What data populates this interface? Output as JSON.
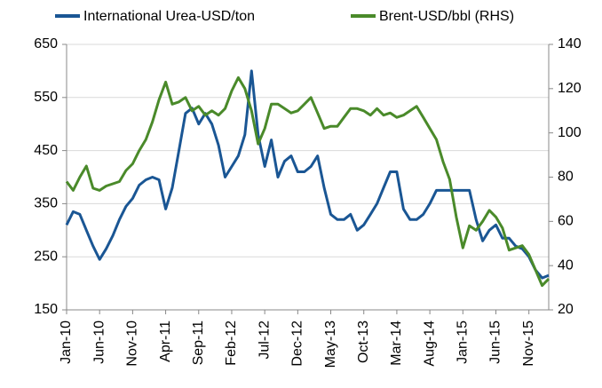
{
  "chart_data": {
    "type": "line",
    "categories": [
      "Jan-10",
      null,
      null,
      null,
      null,
      "Jun-10",
      null,
      null,
      null,
      null,
      "Nov-10",
      null,
      null,
      null,
      null,
      "Apr-11",
      null,
      null,
      null,
      null,
      "Sep-11",
      null,
      null,
      null,
      null,
      "Feb-12",
      null,
      null,
      null,
      null,
      "Jul-12",
      null,
      null,
      null,
      null,
      "Dec-12",
      null,
      null,
      null,
      null,
      "May-13",
      null,
      null,
      null,
      null,
      "Oct-13",
      null,
      null,
      null,
      null,
      "Mar-14",
      null,
      null,
      null,
      null,
      "Aug-14",
      null,
      null,
      null,
      null,
      "Jan-15",
      null,
      null,
      null,
      null,
      "Jun-15",
      null,
      null,
      null,
      null,
      "Nov-15",
      null,
      null,
      null
    ],
    "series": [
      {
        "name": "International Urea-USD/ton",
        "color": "#1a5694",
        "axis": "y",
        "values": [
          310,
          335,
          330,
          300,
          270,
          245,
          265,
          290,
          320,
          345,
          360,
          385,
          395,
          400,
          395,
          340,
          380,
          450,
          520,
          530,
          500,
          520,
          500,
          460,
          400,
          420,
          440,
          480,
          600,
          480,
          420,
          470,
          400,
          430,
          440,
          410,
          410,
          420,
          440,
          380,
          330,
          320,
          320,
          330,
          300,
          310,
          330,
          350,
          380,
          410,
          410,
          340,
          320,
          320,
          330,
          350,
          375,
          375,
          375,
          375,
          375,
          375,
          320,
          280,
          300,
          310,
          285,
          285,
          270,
          265,
          250,
          225,
          210,
          215
        ]
      },
      {
        "name": "Brent-USD/bbl (RHS)",
        "color": "#4a8a2a",
        "axis": "y2",
        "values": [
          78,
          74,
          80,
          85,
          75,
          74,
          76,
          77,
          78,
          83,
          86,
          92,
          97,
          105,
          115,
          123,
          113,
          114,
          116,
          110,
          112,
          108,
          110,
          108,
          111,
          119,
          125,
          120,
          110,
          95,
          102,
          113,
          113,
          111,
          109,
          110,
          113,
          116,
          109,
          102,
          103,
          103,
          107,
          111,
          111,
          110,
          108,
          111,
          108,
          109,
          107,
          108,
          110,
          112,
          107,
          102,
          97,
          87,
          79,
          62,
          48,
          58,
          56,
          60,
          65,
          62,
          57,
          47,
          48,
          49,
          45,
          38,
          31,
          34
        ]
      }
    ],
    "ylim": [
      150,
      650
    ],
    "yticks": [
      150,
      250,
      350,
      450,
      550,
      650
    ],
    "y2lim": [
      20,
      140
    ],
    "y2ticks": [
      20,
      40,
      60,
      80,
      100,
      120,
      140
    ]
  }
}
